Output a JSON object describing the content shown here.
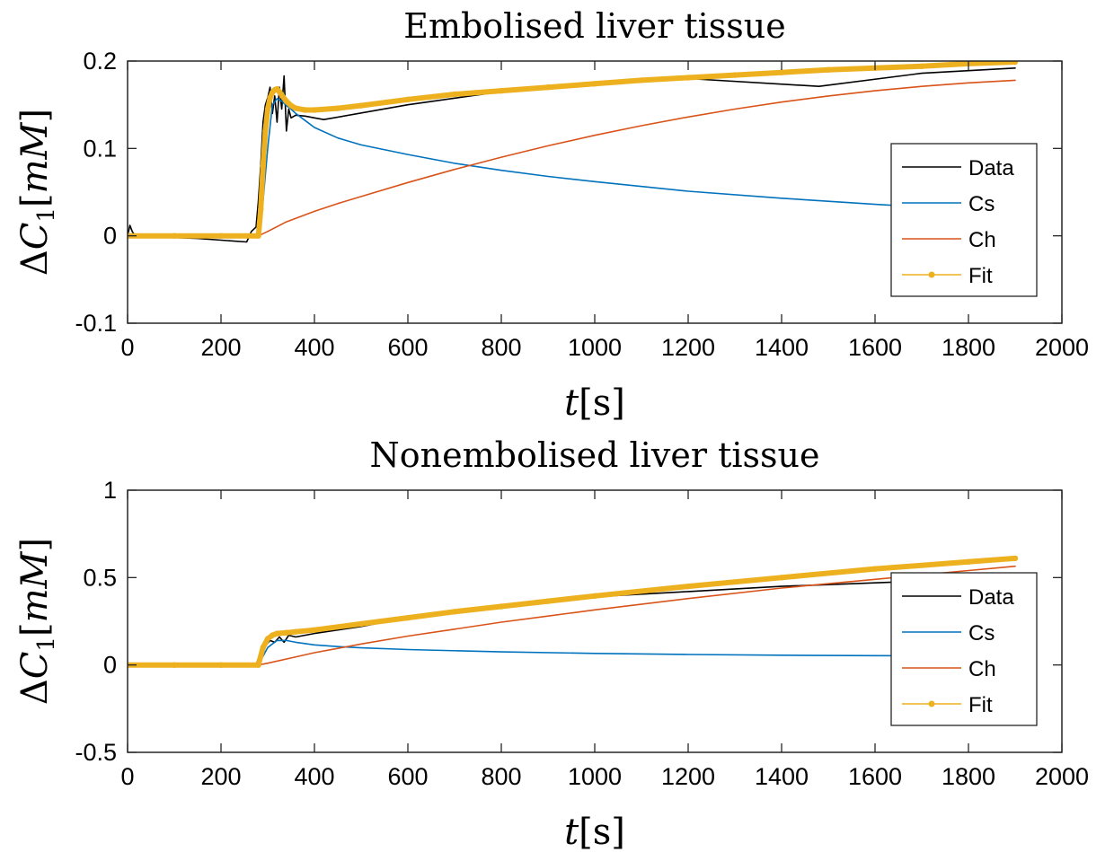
{
  "chart_data": [
    {
      "type": "line",
      "title": "Embolised liver tissue",
      "xlabel_var": "t",
      "xlabel_unit": "[s]",
      "ylabel_prefix": "Δ",
      "ylabel_var": "C",
      "ylabel_sub": "1",
      "ylabel_unit_open": "[",
      "ylabel_unit_var": "mM",
      "ylabel_unit_close": "]",
      "xlim": [
        0,
        2000
      ],
      "ylim": [
        -0.1,
        0.2
      ],
      "xticks": [
        0,
        200,
        400,
        600,
        800,
        1000,
        1200,
        1400,
        1600,
        1800,
        2000
      ],
      "xtick_labels": [
        "0",
        "200",
        "400",
        "600",
        "800",
        "1000",
        "1200",
        "1400",
        "1600",
        "1800",
        "2000"
      ],
      "yticks": [
        -0.1,
        0,
        0.1,
        0.2
      ],
      "ytick_labels": [
        "-0.1",
        "0",
        "0.1",
        "0.2"
      ],
      "grid": false,
      "legend_position": "right",
      "series": [
        {
          "name": "Data",
          "color": "#000000",
          "x": [
            0,
            5,
            10,
            15,
            20,
            40,
            100,
            150,
            200,
            255,
            265,
            275,
            280,
            285,
            290,
            295,
            300,
            305,
            310,
            315,
            320,
            325,
            330,
            335,
            340,
            345,
            350,
            360,
            380,
            400,
            420,
            600,
            800,
            1000,
            1200,
            1480,
            1700,
            1900
          ],
          "y": [
            0,
            0.012,
            0.005,
            0.001,
            0,
            -0.001,
            -0.002,
            -0.003,
            -0.005,
            -0.007,
            0.005,
            0.01,
            0.04,
            0.08,
            0.13,
            0.15,
            0.158,
            0.17,
            0.14,
            0.16,
            0.13,
            0.17,
            0.145,
            0.183,
            0.12,
            0.145,
            0.135,
            0.138,
            0.137,
            0.135,
            0.133,
            0.15,
            0.165,
            0.175,
            0.18,
            0.171,
            0.186,
            0.192
          ]
        },
        {
          "name": "Cs",
          "color": "#0072bd",
          "x": [
            280,
            290,
            300,
            310,
            320,
            330,
            340,
            350,
            360,
            380,
            400,
            450,
            500,
            600,
            700,
            800,
            900,
            1000,
            1200,
            1400,
            1600,
            1800,
            1900
          ],
          "y": [
            0,
            0.04,
            0.1,
            0.15,
            0.157,
            0.154,
            0.149,
            0.145,
            0.14,
            0.132,
            0.124,
            0.112,
            0.104,
            0.093,
            0.083,
            0.075,
            0.068,
            0.062,
            0.051,
            0.043,
            0.036,
            0.03,
            0.028
          ]
        },
        {
          "name": "Ch",
          "color": "#d95319",
          "x": [
            280,
            300,
            340,
            400,
            450,
            500,
            600,
            700,
            800,
            900,
            1000,
            1100,
            1200,
            1300,
            1400,
            1500,
            1600,
            1700,
            1800,
            1900
          ],
          "y": [
            0,
            0.005,
            0.016,
            0.028,
            0.037,
            0.045,
            0.061,
            0.076,
            0.09,
            0.103,
            0.115,
            0.126,
            0.136,
            0.145,
            0.153,
            0.16,
            0.166,
            0.171,
            0.175,
            0.178
          ]
        },
        {
          "name": "Fit",
          "color": "#edb120",
          "x": [
            0,
            100,
            200,
            280,
            285,
            290,
            295,
            300,
            305,
            310,
            315,
            320,
            325,
            330,
            340,
            350,
            360,
            380,
            400,
            450,
            500,
            600,
            700,
            800,
            900,
            1000,
            1100,
            1200,
            1300,
            1400,
            1500,
            1600,
            1700,
            1800,
            1900
          ],
          "y": [
            0,
            0,
            0,
            0,
            0.03,
            0.08,
            0.12,
            0.145,
            0.158,
            0.164,
            0.167,
            0.168,
            0.165,
            0.161,
            0.154,
            0.149,
            0.146,
            0.144,
            0.144,
            0.146,
            0.149,
            0.156,
            0.162,
            0.166,
            0.17,
            0.174,
            0.178,
            0.181,
            0.184,
            0.187,
            0.19,
            0.192,
            0.194,
            0.197,
            0.199
          ]
        }
      ]
    },
    {
      "type": "line",
      "title": "Nonembolised liver tissue",
      "xlabel_var": "t",
      "xlabel_unit": "[s]",
      "ylabel_prefix": "Δ",
      "ylabel_var": "C",
      "ylabel_sub": "1",
      "ylabel_unit_open": "[",
      "ylabel_unit_var": "mM",
      "ylabel_unit_close": "]",
      "xlim": [
        0,
        2000
      ],
      "ylim": [
        -0.5,
        1
      ],
      "xticks": [
        0,
        200,
        400,
        600,
        800,
        1000,
        1200,
        1400,
        1600,
        1800,
        2000
      ],
      "xtick_labels": [
        "0",
        "200",
        "400",
        "600",
        "800",
        "1000",
        "1200",
        "1400",
        "1600",
        "1800",
        "2000"
      ],
      "yticks": [
        -0.5,
        0,
        0.5,
        1
      ],
      "ytick_labels": [
        "-0.5",
        "0",
        "0.5",
        "1"
      ],
      "grid": false,
      "legend_position": "right",
      "series": [
        {
          "name": "Data",
          "color": "#000000",
          "x": [
            0,
            100,
            200,
            275,
            285,
            295,
            305,
            315,
            325,
            335,
            345,
            360,
            400,
            500,
            600,
            800,
            1000,
            1200,
            1400,
            1600,
            1800,
            1900
          ],
          "y": [
            0,
            0,
            0,
            0,
            0.08,
            0.11,
            0.14,
            0.13,
            0.16,
            0.13,
            0.17,
            0.16,
            0.18,
            0.22,
            0.27,
            0.33,
            0.39,
            0.42,
            0.45,
            0.47,
            0.49,
            0.5
          ]
        },
        {
          "name": "Cs",
          "color": "#0072bd",
          "x": [
            280,
            300,
            320,
            340,
            360,
            400,
            450,
            500,
            600,
            800,
            1000,
            1200,
            1400,
            1600,
            1800,
            1900
          ],
          "y": [
            0,
            0.1,
            0.14,
            0.14,
            0.13,
            0.115,
            0.105,
            0.098,
            0.088,
            0.075,
            0.066,
            0.06,
            0.056,
            0.053,
            0.051,
            0.05
          ]
        },
        {
          "name": "Ch",
          "color": "#d95319",
          "x": [
            280,
            300,
            350,
            400,
            450,
            500,
            600,
            700,
            800,
            900,
            1000,
            1200,
            1400,
            1600,
            1800,
            1900
          ],
          "y": [
            0,
            0.01,
            0.04,
            0.07,
            0.095,
            0.12,
            0.165,
            0.205,
            0.245,
            0.28,
            0.315,
            0.38,
            0.44,
            0.49,
            0.54,
            0.565
          ]
        },
        {
          "name": "Fit",
          "color": "#edb120",
          "x": [
            0,
            100,
            200,
            280,
            290,
            300,
            310,
            320,
            340,
            360,
            400,
            500,
            600,
            700,
            800,
            900,
            1000,
            1200,
            1400,
            1600,
            1800,
            1900
          ],
          "y": [
            0,
            0,
            0,
            0,
            0.1,
            0.15,
            0.17,
            0.18,
            0.185,
            0.19,
            0.2,
            0.235,
            0.27,
            0.305,
            0.335,
            0.365,
            0.395,
            0.45,
            0.5,
            0.55,
            0.59,
            0.61
          ]
        }
      ]
    }
  ]
}
